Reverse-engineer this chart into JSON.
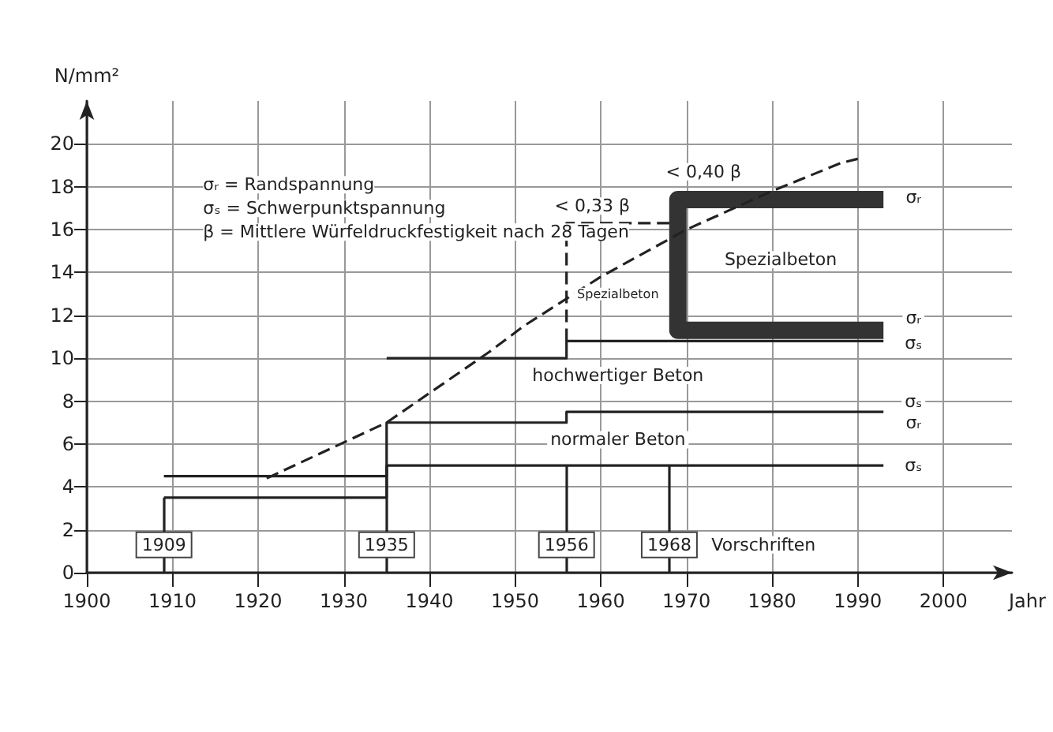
{
  "chart_data": {
    "type": "step",
    "xlabel": "Jahr",
    "ylabel": "N/mm²",
    "xlim": [
      1900,
      2008
    ],
    "xticks": [
      1900,
      1910,
      1920,
      1930,
      1940,
      1950,
      1960,
      1970,
      1980,
      1990,
      2000
    ],
    "ylim": [
      0,
      22
    ],
    "yticks": [
      0,
      2,
      4,
      6,
      8,
      10,
      12,
      14,
      16,
      18,
      20
    ],
    "grid": true,
    "legend": false,
    "marker": "none",
    "series": [
      {
        "color": "#222222",
        "x": [
          1909,
          1935,
          1993
        ],
        "values": [
          3.5,
          5,
          5
        ]
      },
      {
        "color": "#222222",
        "x": [
          1909,
          1935,
          1956,
          1993
        ],
        "values": [
          4.5,
          7,
          7.5,
          7.5
        ]
      },
      {
        "color": "#222222",
        "x": [
          1935,
          1956,
          1993
        ],
        "values": [
          10,
          10.8,
          10.8
        ]
      },
      {
        "type": "line",
        "color": "#333333",
        "x": [
          1993,
          1969,
          1969,
          1993
        ],
        "values": [
          17.4,
          17.4,
          11.3,
          11.3
        ]
      },
      {
        "type": "line",
        "color": "#222222",
        "line_style": "dashed",
        "x": [
          1956,
          1956,
          1968
        ],
        "values": [
          10.8,
          16.3,
          16.3
        ]
      },
      {
        "type": "line",
        "color": "#222222",
        "line_style": "dashed",
        "x": [
          1921,
          1935,
          1947,
          1951,
          1960,
          1970,
          1980,
          1988,
          1990
        ],
        "values": [
          4.4,
          7.0,
          10.3,
          11.5,
          13.8,
          16.0,
          17.8,
          19.1,
          19.3
        ]
      }
    ],
    "ref_lines": [
      {
        "axis": "x",
        "value": 1909,
        "label": "1909"
      },
      {
        "axis": "x",
        "value": 1935,
        "label": "1935"
      },
      {
        "axis": "x",
        "value": 1956,
        "label": "1956"
      },
      {
        "axis": "x",
        "value": 1968,
        "label": "1968"
      }
    ],
    "annotations": [
      "σᵣ = Randspannung",
      "σₛ = Schwerpunktspannung",
      "β = Mittlere Würfeldruckfestigkeit nach 28 Tagen",
      "< 0,33 β",
      "< 0,40 β",
      "Spezialbeton",
      "Spezialbeton",
      "hochwertiger Beton",
      "normaler Beton",
      "Vorschriften",
      "σᵣ",
      "σᵣ",
      "σₛ",
      "σₛ",
      "σᵣ",
      "σₛ"
    ]
  }
}
